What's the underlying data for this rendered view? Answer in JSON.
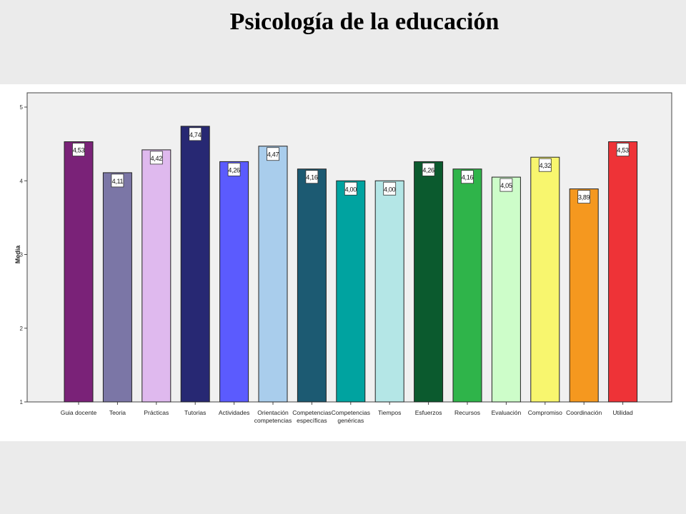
{
  "slide": {
    "title": "Psicología de la educación"
  },
  "chart_data": {
    "type": "bar",
    "ylabel": "Media",
    "xlabel": "",
    "ylim": [
      1,
      5
    ],
    "yticks": [
      "1",
      "2",
      "3",
      "4",
      "5"
    ],
    "grid": false,
    "legend": "none",
    "categories": [
      [
        "Guia docente"
      ],
      [
        "Teoria"
      ],
      [
        "Prácticas"
      ],
      [
        "Tutorias"
      ],
      [
        "Actividades"
      ],
      [
        "Orientación",
        "competencias"
      ],
      [
        "Competencias",
        "específicas"
      ],
      [
        "Competencias",
        "genéricas"
      ],
      [
        "Tiempos"
      ],
      [
        "Esfuerzos"
      ],
      [
        "Recursos"
      ],
      [
        "Evaluación"
      ],
      [
        "Compromiso"
      ],
      [
        "Coordinación"
      ],
      [
        "Utilidad"
      ]
    ],
    "values": [
      4.53,
      4.11,
      4.42,
      4.74,
      4.26,
      4.47,
      4.16,
      4.0,
      4.0,
      4.26,
      4.16,
      4.05,
      4.32,
      3.89,
      4.53
    ],
    "data_labels": [
      "4,53",
      "4,11",
      "4,42",
      "4,74",
      "4,26",
      "4,47",
      "4,16",
      "4,00",
      "4,00",
      "4,26",
      "4,16",
      "4,05",
      "4,32",
      "3,89",
      "4,53"
    ],
    "colors": [
      "#7a2278",
      "#7b76a6",
      "#dfb9ee",
      "#272873",
      "#5b5bfe",
      "#a9cdec",
      "#1c5a72",
      "#00a3a0",
      "#b4e6e6",
      "#0b5a2e",
      "#2fb44a",
      "#cdfdc9",
      "#f8f66e",
      "#f5981f",
      "#ee3337"
    ],
    "plot_background": "#f0f0f0"
  }
}
